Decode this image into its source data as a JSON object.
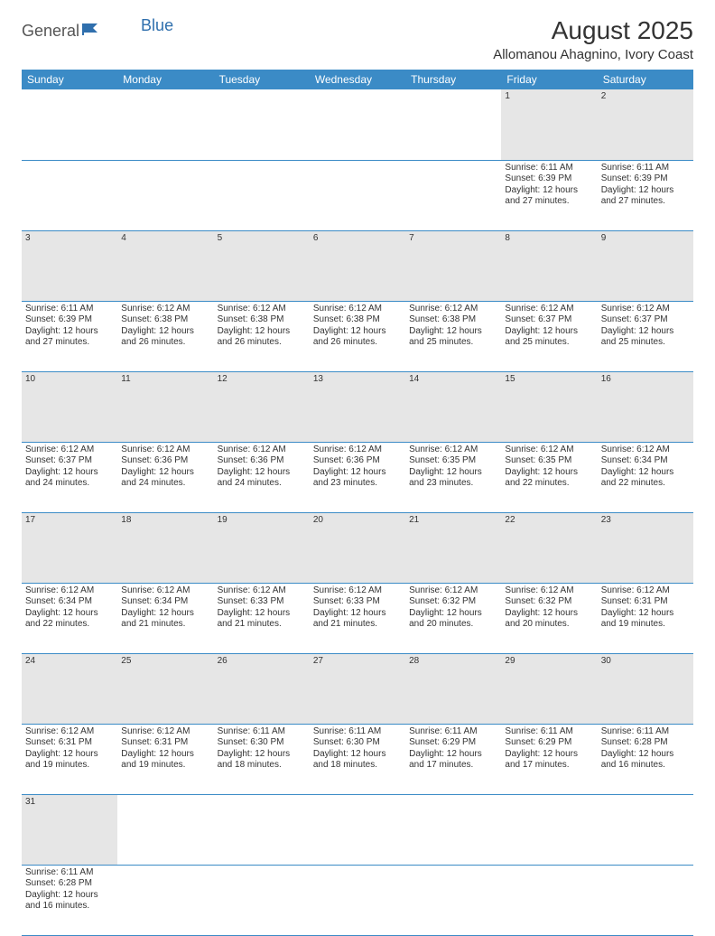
{
  "logo": {
    "text1": "General",
    "text2": "Blue"
  },
  "title": "August 2025",
  "location": "Allomanou Ahagnino, Ivory Coast",
  "colors": {
    "header_bg": "#3b8bc6",
    "header_text": "#ffffff",
    "daynum_bg": "#e6e6e6",
    "rule": "#3b8bc6",
    "logo_blue": "#2f6fad"
  },
  "day_headers": [
    "Sunday",
    "Monday",
    "Tuesday",
    "Wednesday",
    "Thursday",
    "Friday",
    "Saturday"
  ],
  "weeks": [
    {
      "nums": [
        "",
        "",
        "",
        "",
        "",
        "1",
        "2"
      ],
      "cells": [
        null,
        null,
        null,
        null,
        null,
        {
          "sr": "Sunrise: 6:11 AM",
          "ss": "Sunset: 6:39 PM",
          "d1": "Daylight: 12 hours",
          "d2": "and 27 minutes."
        },
        {
          "sr": "Sunrise: 6:11 AM",
          "ss": "Sunset: 6:39 PM",
          "d1": "Daylight: 12 hours",
          "d2": "and 27 minutes."
        }
      ]
    },
    {
      "nums": [
        "3",
        "4",
        "5",
        "6",
        "7",
        "8",
        "9"
      ],
      "cells": [
        {
          "sr": "Sunrise: 6:11 AM",
          "ss": "Sunset: 6:39 PM",
          "d1": "Daylight: 12 hours",
          "d2": "and 27 minutes."
        },
        {
          "sr": "Sunrise: 6:12 AM",
          "ss": "Sunset: 6:38 PM",
          "d1": "Daylight: 12 hours",
          "d2": "and 26 minutes."
        },
        {
          "sr": "Sunrise: 6:12 AM",
          "ss": "Sunset: 6:38 PM",
          "d1": "Daylight: 12 hours",
          "d2": "and 26 minutes."
        },
        {
          "sr": "Sunrise: 6:12 AM",
          "ss": "Sunset: 6:38 PM",
          "d1": "Daylight: 12 hours",
          "d2": "and 26 minutes."
        },
        {
          "sr": "Sunrise: 6:12 AM",
          "ss": "Sunset: 6:38 PM",
          "d1": "Daylight: 12 hours",
          "d2": "and 25 minutes."
        },
        {
          "sr": "Sunrise: 6:12 AM",
          "ss": "Sunset: 6:37 PM",
          "d1": "Daylight: 12 hours",
          "d2": "and 25 minutes."
        },
        {
          "sr": "Sunrise: 6:12 AM",
          "ss": "Sunset: 6:37 PM",
          "d1": "Daylight: 12 hours",
          "d2": "and 25 minutes."
        }
      ]
    },
    {
      "nums": [
        "10",
        "11",
        "12",
        "13",
        "14",
        "15",
        "16"
      ],
      "cells": [
        {
          "sr": "Sunrise: 6:12 AM",
          "ss": "Sunset: 6:37 PM",
          "d1": "Daylight: 12 hours",
          "d2": "and 24 minutes."
        },
        {
          "sr": "Sunrise: 6:12 AM",
          "ss": "Sunset: 6:36 PM",
          "d1": "Daylight: 12 hours",
          "d2": "and 24 minutes."
        },
        {
          "sr": "Sunrise: 6:12 AM",
          "ss": "Sunset: 6:36 PM",
          "d1": "Daylight: 12 hours",
          "d2": "and 24 minutes."
        },
        {
          "sr": "Sunrise: 6:12 AM",
          "ss": "Sunset: 6:36 PM",
          "d1": "Daylight: 12 hours",
          "d2": "and 23 minutes."
        },
        {
          "sr": "Sunrise: 6:12 AM",
          "ss": "Sunset: 6:35 PM",
          "d1": "Daylight: 12 hours",
          "d2": "and 23 minutes."
        },
        {
          "sr": "Sunrise: 6:12 AM",
          "ss": "Sunset: 6:35 PM",
          "d1": "Daylight: 12 hours",
          "d2": "and 22 minutes."
        },
        {
          "sr": "Sunrise: 6:12 AM",
          "ss": "Sunset: 6:34 PM",
          "d1": "Daylight: 12 hours",
          "d2": "and 22 minutes."
        }
      ]
    },
    {
      "nums": [
        "17",
        "18",
        "19",
        "20",
        "21",
        "22",
        "23"
      ],
      "cells": [
        {
          "sr": "Sunrise: 6:12 AM",
          "ss": "Sunset: 6:34 PM",
          "d1": "Daylight: 12 hours",
          "d2": "and 22 minutes."
        },
        {
          "sr": "Sunrise: 6:12 AM",
          "ss": "Sunset: 6:34 PM",
          "d1": "Daylight: 12 hours",
          "d2": "and 21 minutes."
        },
        {
          "sr": "Sunrise: 6:12 AM",
          "ss": "Sunset: 6:33 PM",
          "d1": "Daylight: 12 hours",
          "d2": "and 21 minutes."
        },
        {
          "sr": "Sunrise: 6:12 AM",
          "ss": "Sunset: 6:33 PM",
          "d1": "Daylight: 12 hours",
          "d2": "and 21 minutes."
        },
        {
          "sr": "Sunrise: 6:12 AM",
          "ss": "Sunset: 6:32 PM",
          "d1": "Daylight: 12 hours",
          "d2": "and 20 minutes."
        },
        {
          "sr": "Sunrise: 6:12 AM",
          "ss": "Sunset: 6:32 PM",
          "d1": "Daylight: 12 hours",
          "d2": "and 20 minutes."
        },
        {
          "sr": "Sunrise: 6:12 AM",
          "ss": "Sunset: 6:31 PM",
          "d1": "Daylight: 12 hours",
          "d2": "and 19 minutes."
        }
      ]
    },
    {
      "nums": [
        "24",
        "25",
        "26",
        "27",
        "28",
        "29",
        "30"
      ],
      "cells": [
        {
          "sr": "Sunrise: 6:12 AM",
          "ss": "Sunset: 6:31 PM",
          "d1": "Daylight: 12 hours",
          "d2": "and 19 minutes."
        },
        {
          "sr": "Sunrise: 6:12 AM",
          "ss": "Sunset: 6:31 PM",
          "d1": "Daylight: 12 hours",
          "d2": "and 19 minutes."
        },
        {
          "sr": "Sunrise: 6:11 AM",
          "ss": "Sunset: 6:30 PM",
          "d1": "Daylight: 12 hours",
          "d2": "and 18 minutes."
        },
        {
          "sr": "Sunrise: 6:11 AM",
          "ss": "Sunset: 6:30 PM",
          "d1": "Daylight: 12 hours",
          "d2": "and 18 minutes."
        },
        {
          "sr": "Sunrise: 6:11 AM",
          "ss": "Sunset: 6:29 PM",
          "d1": "Daylight: 12 hours",
          "d2": "and 17 minutes."
        },
        {
          "sr": "Sunrise: 6:11 AM",
          "ss": "Sunset: 6:29 PM",
          "d1": "Daylight: 12 hours",
          "d2": "and 17 minutes."
        },
        {
          "sr": "Sunrise: 6:11 AM",
          "ss": "Sunset: 6:28 PM",
          "d1": "Daylight: 12 hours",
          "d2": "and 16 minutes."
        }
      ]
    },
    {
      "nums": [
        "31",
        "",
        "",
        "",
        "",
        "",
        ""
      ],
      "cells": [
        {
          "sr": "Sunrise: 6:11 AM",
          "ss": "Sunset: 6:28 PM",
          "d1": "Daylight: 12 hours",
          "d2": "and 16 minutes."
        },
        null,
        null,
        null,
        null,
        null,
        null
      ]
    }
  ]
}
